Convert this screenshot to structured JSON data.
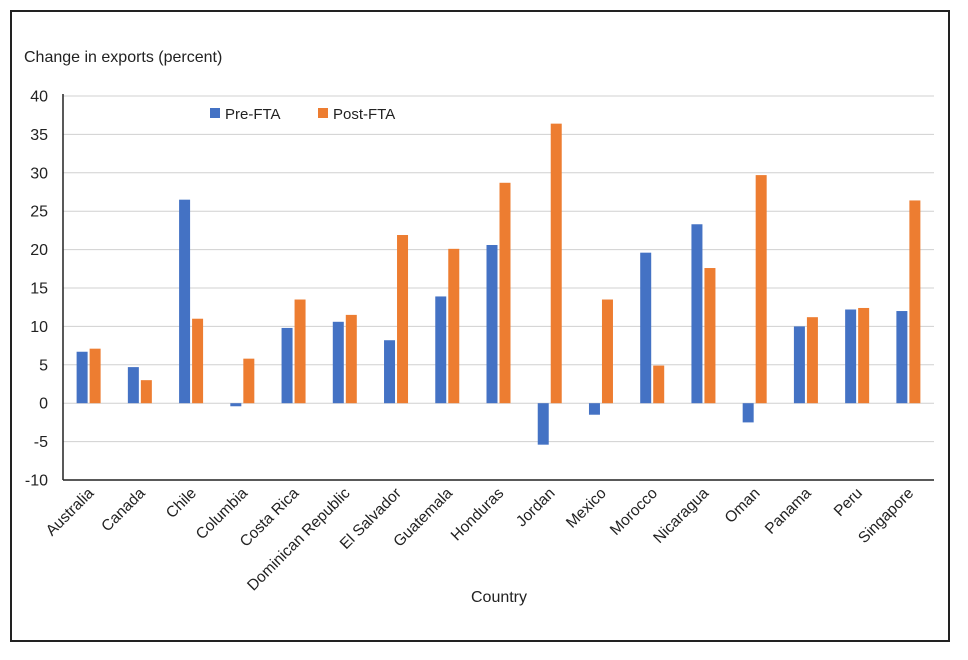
{
  "chart_data": {
    "type": "bar",
    "ylabel": "Change in exports (percent)",
    "xlabel": "Country",
    "ylim": [
      -10,
      40
    ],
    "yticks": [
      -10,
      -5,
      0,
      5,
      10,
      15,
      20,
      25,
      30,
      35,
      40
    ],
    "grid": true,
    "legend_position": "top-left",
    "categories": [
      "Australia",
      "Canada",
      "Chile",
      "Columbia",
      "Costa Rica",
      "Dominican Republic",
      "El Salvador",
      "Guatemala",
      "Honduras",
      "Jordan",
      "Mexico",
      "Morocco",
      "Nicaragua",
      "Oman",
      "Panama",
      "Peru",
      "Singapore"
    ],
    "series": [
      {
        "name": "Pre-FTA",
        "color": "#4472C4",
        "values": [
          6.7,
          4.7,
          26.5,
          -0.4,
          9.8,
          10.6,
          8.2,
          13.9,
          20.6,
          -5.4,
          -1.5,
          19.6,
          23.3,
          -2.5,
          10.0,
          12.2,
          12.0
        ]
      },
      {
        "name": "Post-FTA",
        "color": "#ED7D31",
        "values": [
          7.1,
          3.0,
          11.0,
          5.8,
          13.5,
          11.5,
          21.9,
          20.1,
          28.7,
          36.4,
          13.5,
          4.9,
          17.6,
          29.7,
          11.2,
          12.4,
          26.4
        ]
      }
    ]
  }
}
